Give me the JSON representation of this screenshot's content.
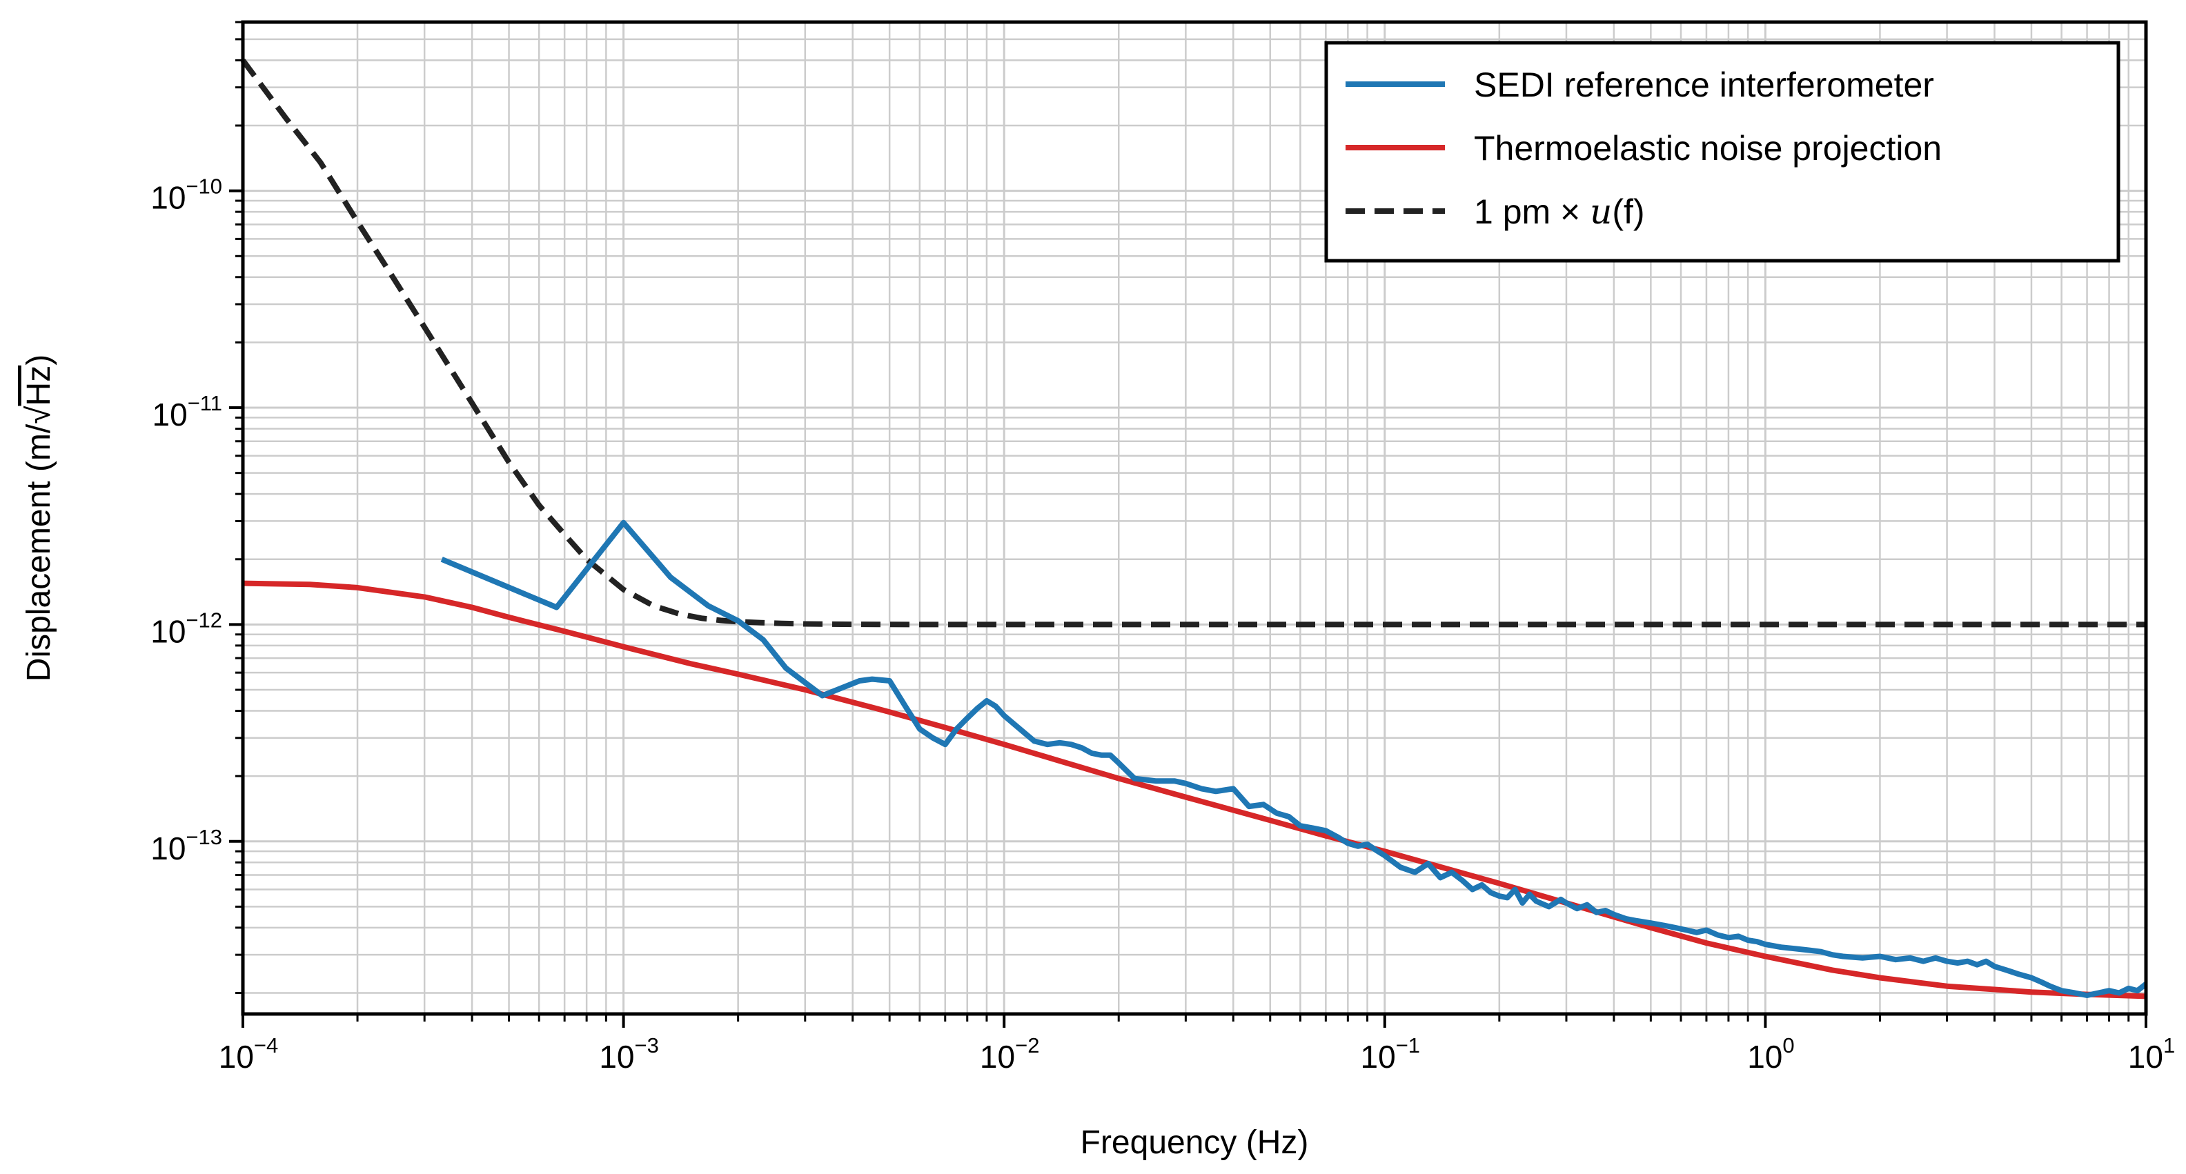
{
  "chart_data": {
    "type": "line",
    "xscale": "log",
    "yscale": "log",
    "xlabel": "Frequency (Hz)",
    "ylabel_prefix": "Displacement (m/",
    "ylabel_sqrt": "√",
    "ylabel_radicand": "Hz",
    "ylabel_suffix": ")",
    "xlim": [
      0.0001,
      10
    ],
    "ylim": [
      1.6e-14,
      6e-10
    ],
    "grid": true,
    "legend_location": "top-right",
    "x_ticks": [
      {
        "base": "10",
        "exp": "−4",
        "value": 0.0001
      },
      {
        "base": "10",
        "exp": "−3",
        "value": 0.001
      },
      {
        "base": "10",
        "exp": "−2",
        "value": 0.01
      },
      {
        "base": "10",
        "exp": "−1",
        "value": 0.1
      },
      {
        "base": "10",
        "exp": "0",
        "value": 1
      },
      {
        "base": "10",
        "exp": "1",
        "value": 10
      }
    ],
    "y_ticks": [
      {
        "base": "10",
        "exp": "−10",
        "value": 1e-10
      },
      {
        "base": "10",
        "exp": "−11",
        "value": 1e-11
      },
      {
        "base": "10",
        "exp": "−12",
        "value": 1e-12
      },
      {
        "base": "10",
        "exp": "−13",
        "value": 1e-13
      }
    ],
    "series": [
      {
        "name": "SEDI reference interferometer",
        "color": "#1f77b4",
        "dash": "solid",
        "x": [
          0.000333,
          0.000667,
          0.001,
          0.00133,
          0.00167,
          0.002,
          0.00233,
          0.00267,
          0.00333,
          0.00417,
          0.0045,
          0.005,
          0.0055,
          0.006,
          0.0065,
          0.007,
          0.0075,
          0.008,
          0.0085,
          0.009,
          0.0095,
          0.01,
          0.011,
          0.012,
          0.013,
          0.014,
          0.015,
          0.016,
          0.017,
          0.018,
          0.019,
          0.02,
          0.022,
          0.025,
          0.028,
          0.03,
          0.033,
          0.036,
          0.04,
          0.044,
          0.048,
          0.052,
          0.056,
          0.06,
          0.065,
          0.07,
          0.075,
          0.08,
          0.085,
          0.09,
          0.095,
          0.1,
          0.11,
          0.12,
          0.13,
          0.14,
          0.15,
          0.16,
          0.17,
          0.18,
          0.19,
          0.2,
          0.21,
          0.22,
          0.23,
          0.24,
          0.25,
          0.27,
          0.29,
          0.3,
          0.32,
          0.34,
          0.36,
          0.38,
          0.4,
          0.43,
          0.46,
          0.5,
          0.54,
          0.58,
          0.62,
          0.66,
          0.7,
          0.75,
          0.8,
          0.85,
          0.9,
          0.95,
          1.0,
          1.1,
          1.2,
          1.3,
          1.4,
          1.5,
          1.6,
          1.8,
          2.0,
          2.2,
          2.4,
          2.6,
          2.8,
          3.0,
          3.2,
          3.4,
          3.6,
          3.8,
          4.0,
          4.3,
          4.6,
          5.0,
          5.3,
          5.6,
          6.0,
          6.5,
          7.0,
          7.5,
          8.0,
          8.5,
          9.0,
          9.5,
          10.0
        ],
        "values": [
          2e-12,
          1.2e-12,
          2.95e-12,
          1.65e-12,
          1.22e-12,
          1.04e-12,
          8.5e-13,
          6.3e-13,
          4.7e-13,
          5.5e-13,
          5.6e-13,
          5.5e-13,
          4.2e-13,
          3.3e-13,
          3e-13,
          2.8e-13,
          3.3e-13,
          3.7e-13,
          4.1e-13,
          4.45e-13,
          4.2e-13,
          3.8e-13,
          3.3e-13,
          2.9e-13,
          2.8e-13,
          2.85e-13,
          2.8e-13,
          2.7e-13,
          2.55e-13,
          2.5e-13,
          2.5e-13,
          2.3e-13,
          1.95e-13,
          1.9e-13,
          1.9e-13,
          1.85e-13,
          1.75e-13,
          1.7e-13,
          1.75e-13,
          1.45e-13,
          1.48e-13,
          1.35e-13,
          1.3e-13,
          1.18e-13,
          1.15e-13,
          1.12e-13,
          1.05e-13,
          9.8e-14,
          9.5e-14,
          9.7e-14,
          9.1e-14,
          8.6e-14,
          7.6e-14,
          7.2e-14,
          7.9e-14,
          6.8e-14,
          7.2e-14,
          6.6e-14,
          6e-14,
          6.3e-14,
          5.8e-14,
          5.6e-14,
          5.5e-14,
          6e-14,
          5.2e-14,
          5.7e-14,
          5.3e-14,
          5e-14,
          5.4e-14,
          5.2e-14,
          4.9e-14,
          5.1e-14,
          4.7e-14,
          4.8e-14,
          4.6e-14,
          4.4e-14,
          4.3e-14,
          4.2e-14,
          4.1e-14,
          4e-14,
          3.9e-14,
          3.8e-14,
          3.9e-14,
          3.7e-14,
          3.6e-14,
          3.65e-14,
          3.5e-14,
          3.45e-14,
          3.35e-14,
          3.25e-14,
          3.2e-14,
          3.15e-14,
          3.1e-14,
          3e-14,
          2.95e-14,
          2.9e-14,
          2.95e-14,
          2.85e-14,
          2.9e-14,
          2.8e-14,
          2.9e-14,
          2.8e-14,
          2.75e-14,
          2.8e-14,
          2.7e-14,
          2.8e-14,
          2.65e-14,
          2.55e-14,
          2.45e-14,
          2.35e-14,
          2.25e-14,
          2.15e-14,
          2.05e-14,
          2e-14,
          1.95e-14,
          2e-14,
          2.05e-14,
          2e-14,
          2.1e-14,
          2.05e-14,
          2.2e-14
        ]
      },
      {
        "name": "Thermoelastic noise projection",
        "color": "#d62728",
        "dash": "solid",
        "x": [
          0.0001,
          0.00015,
          0.0002,
          0.0003,
          0.0004,
          0.0005,
          0.0007,
          0.001,
          0.0015,
          0.002,
          0.003,
          0.005,
          0.007,
          0.01,
          0.02,
          0.03,
          0.05,
          0.07,
          0.1,
          0.2,
          0.3,
          0.5,
          0.7,
          1.0,
          1.5,
          2.0,
          3.0,
          5.0,
          7.0,
          10.0
        ],
        "values": [
          1.55e-12,
          1.53e-12,
          1.48e-12,
          1.34e-12,
          1.2e-12,
          1.08e-12,
          9.3e-13,
          7.9e-13,
          6.6e-13,
          5.9e-13,
          5e-13,
          3.95e-13,
          3.35e-13,
          2.8e-13,
          1.95e-13,
          1.6e-13,
          1.25e-13,
          1.06e-13,
          9e-14,
          6.4e-14,
          5.2e-14,
          4e-14,
          3.4e-14,
          2.95e-14,
          2.55e-14,
          2.35e-14,
          2.15e-14,
          2.02e-14,
          1.97e-14,
          1.93e-14
        ]
      },
      {
        "name_prefix": "1 pm × ",
        "name_func": "u",
        "name_arg": "(f)",
        "color": "#222222",
        "dash": "dashed",
        "x": [
          0.0001,
          0.00013,
          0.00016,
          0.0002,
          0.00025,
          0.0003,
          0.0004,
          0.0005,
          0.0006,
          0.0007,
          0.0008,
          0.001,
          0.0012,
          0.0014,
          0.0016,
          0.0018,
          0.002,
          0.0023,
          0.0026,
          0.003,
          0.0035,
          0.004,
          0.005,
          0.007,
          0.01,
          0.03,
          0.1,
          1.0,
          10.0
        ],
        "values": [
          4e-10,
          2.15e-10,
          1.35e-10,
          7.2e-11,
          3.9e-11,
          2.35e-11,
          1.05e-11,
          5.6e-12,
          3.55e-12,
          2.6e-12,
          2e-12,
          1.45e-12,
          1.22e-12,
          1.12e-12,
          1.07e-12,
          1.045e-12,
          1.03e-12,
          1.02e-12,
          1.012e-12,
          1.007e-12,
          1.004e-12,
          1.002e-12,
          1.001e-12,
          1e-12,
          1e-12,
          1e-12,
          1e-12,
          1e-12,
          1e-12
        ]
      }
    ]
  }
}
